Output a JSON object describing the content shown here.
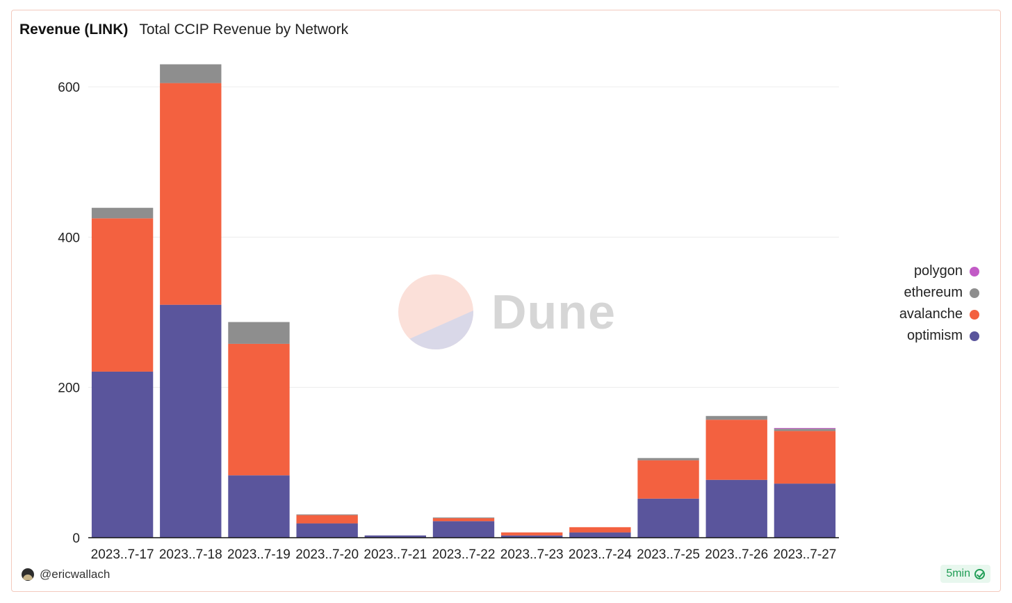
{
  "header": {
    "title": "Revenue (LINK)",
    "subtitle": "Total CCIP Revenue by Network"
  },
  "legend": [
    {
      "label": "polygon",
      "color": "#c25bc6"
    },
    {
      "label": "ethereum",
      "color": "#8e8e8e"
    },
    {
      "label": "avalanche",
      "color": "#f36140"
    },
    {
      "label": "optimism",
      "color": "#5a559c"
    }
  ],
  "watermark": "Dune",
  "footer": {
    "username": "@ericwallach",
    "refresh_badge": "5min"
  },
  "chart_data": {
    "type": "bar",
    "stacked": true,
    "title": "Total CCIP Revenue by Network",
    "ylabel": "",
    "xlabel": "",
    "ylim": [
      0,
      600
    ],
    "yticks": [
      0,
      200,
      400,
      600
    ],
    "categories": [
      "2023..7-17",
      "2023..7-18",
      "2023..7-19",
      "2023..7-20",
      "2023..7-21",
      "2023..7-22",
      "2023..7-23",
      "2023..7-24",
      "2023..7-25",
      "2023..7-26",
      "2023..7-27"
    ],
    "series": [
      {
        "name": "optimism",
        "color": "#5a559c",
        "values": [
          221,
          310,
          83,
          19,
          3,
          22,
          3,
          7,
          52,
          77,
          72
        ]
      },
      {
        "name": "avalanche",
        "color": "#f36140",
        "values": [
          204,
          295,
          175,
          11,
          0,
          4,
          4,
          7,
          51,
          80,
          70
        ]
      },
      {
        "name": "ethereum",
        "color": "#8e8e8e",
        "values": [
          14,
          25,
          29,
          1,
          0,
          1,
          0,
          0,
          3,
          5,
          3
        ]
      },
      {
        "name": "polygon",
        "color": "#c25bc6",
        "values": [
          0,
          0,
          0,
          0,
          0,
          0,
          0,
          0,
          0,
          0,
          1
        ]
      }
    ]
  }
}
